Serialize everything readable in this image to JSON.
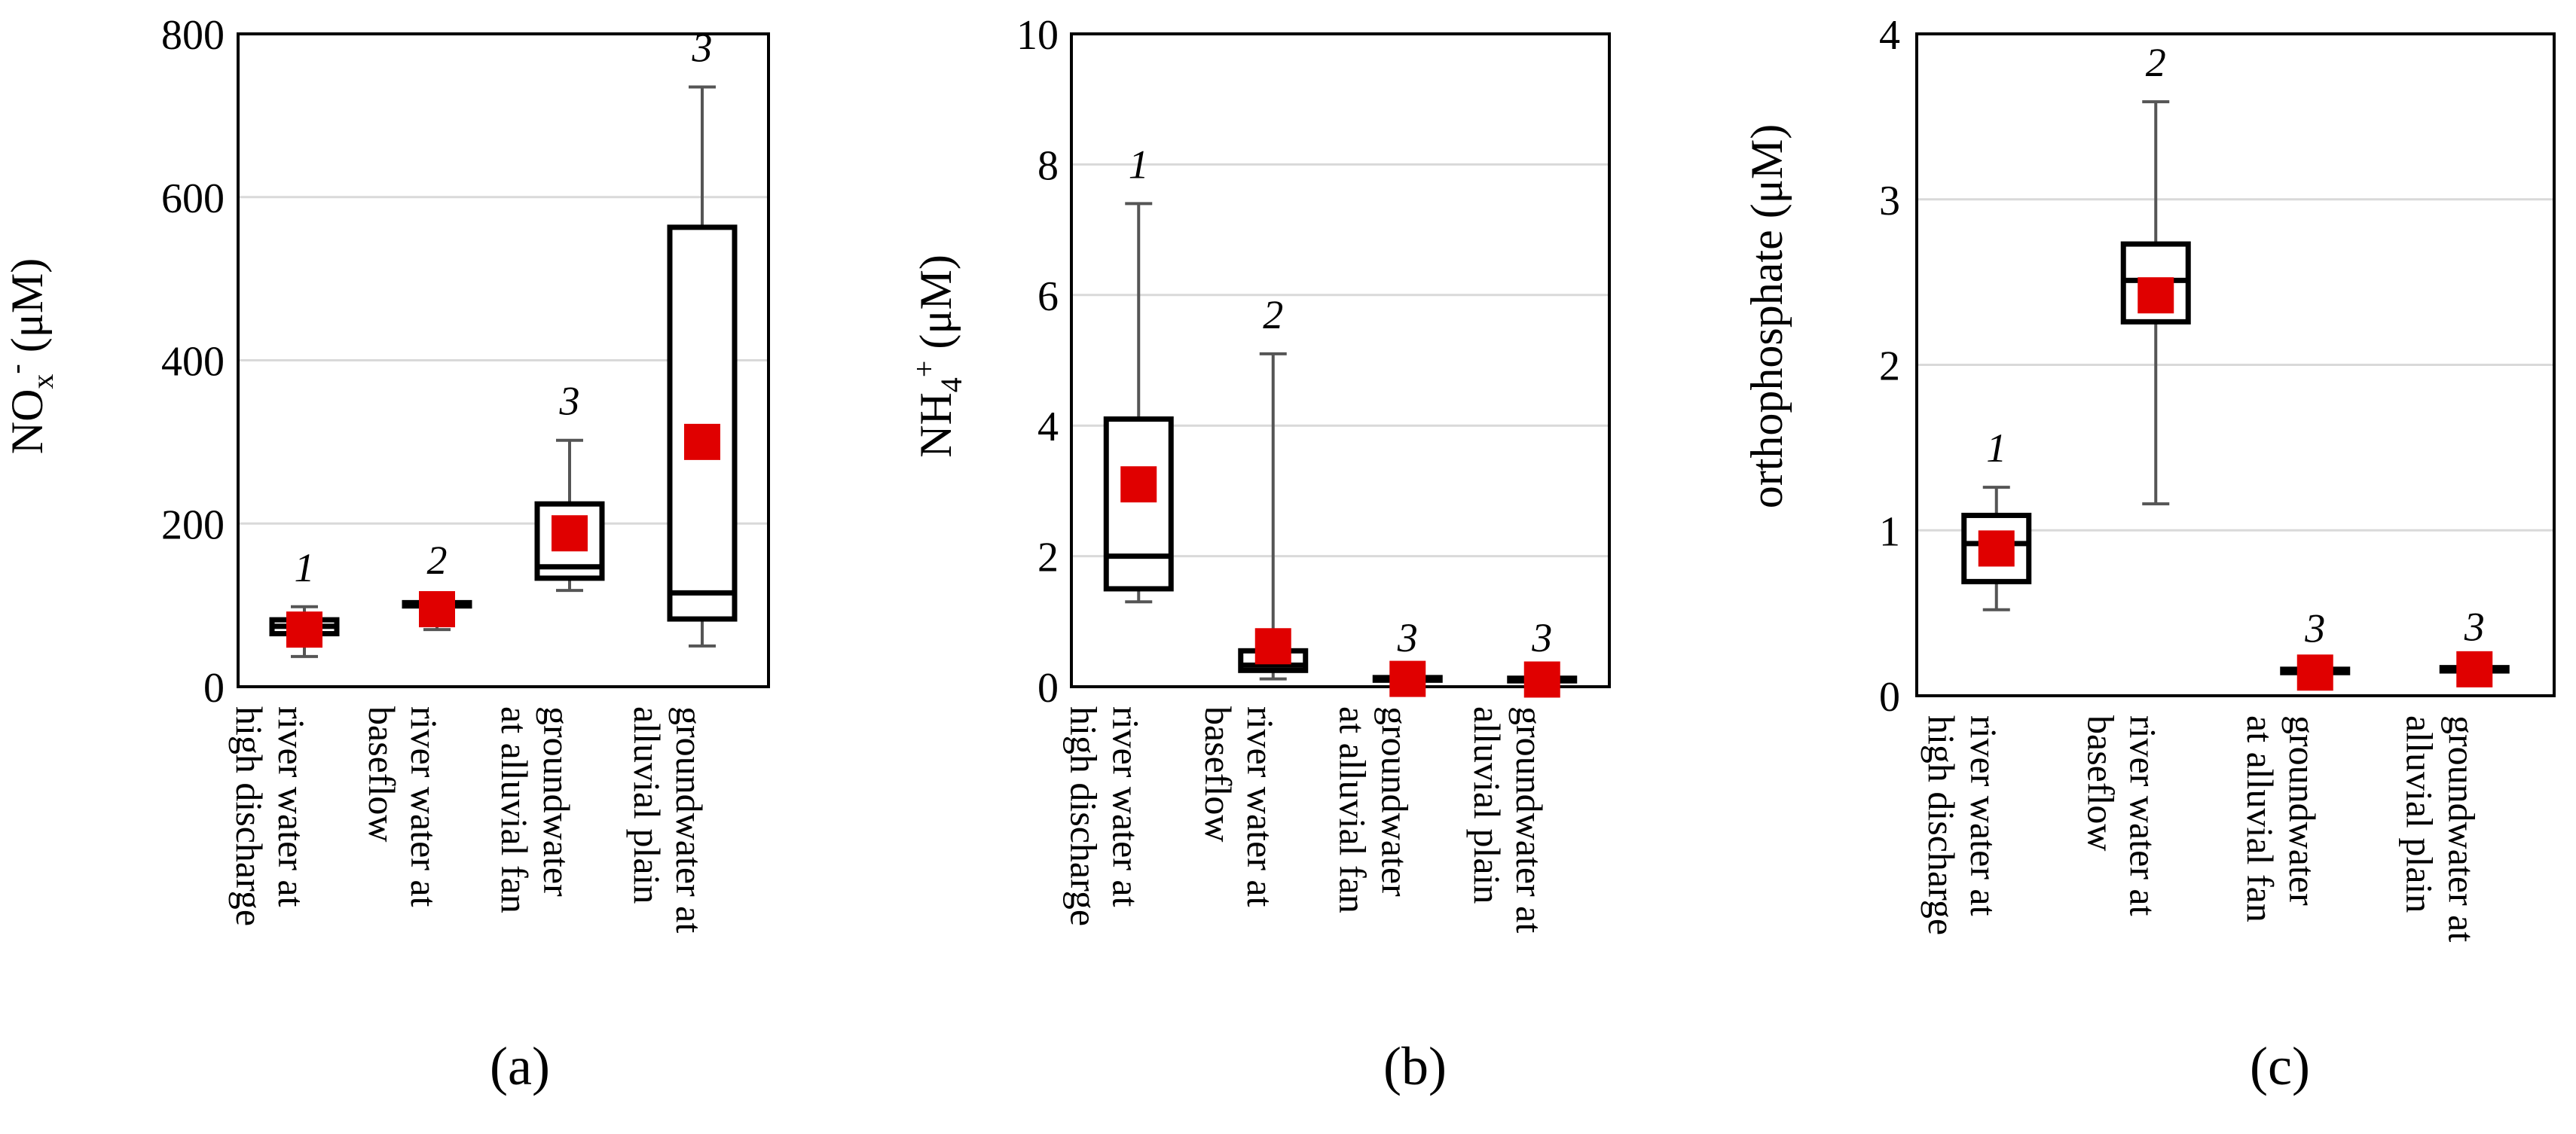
{
  "chart_data": [
    {
      "type": "boxplot",
      "panel_label": "(a)",
      "ylabel": {
        "main": "NO",
        "sub": "x",
        "sup": "-",
        "unit": " (μM)"
      },
      "ylim": [
        0,
        800
      ],
      "yticks": [
        0,
        200,
        400,
        600,
        800
      ],
      "categories": [
        [
          "river water at",
          "high discharge"
        ],
        [
          "river water at",
          "baseflow"
        ],
        [
          "groundwater",
          "at alluvial fan"
        ],
        [
          "groundwater at",
          "alluvial plain"
        ]
      ],
      "boxes": [
        {
          "min": 37,
          "q1": 65,
          "median": 74,
          "q3": 82,
          "max": 98,
          "mean": 70,
          "n": "1"
        },
        {
          "min": 70,
          "q1": 99,
          "median": 101,
          "q3": 103,
          "max": 107,
          "mean": 95,
          "n": "2"
        },
        {
          "min": 118,
          "q1": 133,
          "median": 147,
          "q3": 224,
          "max": 302,
          "mean": 188,
          "n": "3"
        },
        {
          "min": 50,
          "q1": 83,
          "median": 115,
          "q3": 563,
          "max": 735,
          "mean": 300,
          "n": "3"
        }
      ]
    },
    {
      "type": "boxplot",
      "panel_label": "(b)",
      "ylabel": {
        "main": "NH",
        "sub": "4",
        "sup": "+",
        "unit": " (μM)"
      },
      "ylim": [
        0,
        10
      ],
      "yticks": [
        0,
        2,
        4,
        6,
        8,
        10
      ],
      "categories": [
        [
          "river water at",
          "high discharge"
        ],
        [
          "river water at",
          "baseflow"
        ],
        [
          "groundwater",
          "at alluvial fan"
        ],
        [
          "groundwater at",
          "alluvial plain"
        ]
      ],
      "boxes": [
        {
          "min": 1.3,
          "q1": 1.5,
          "median": 2.0,
          "q3": 4.1,
          "max": 7.4,
          "mean": 3.1,
          "n": "1"
        },
        {
          "min": 0.12,
          "q1": 0.25,
          "median": 0.33,
          "q3": 0.55,
          "max": 5.1,
          "mean": 0.62,
          "n": "2"
        },
        {
          "min": 0.09,
          "q1": 0.1,
          "median": 0.12,
          "q3": 0.14,
          "max": 0.15,
          "mean": 0.12,
          "n": "3"
        },
        {
          "min": 0.07,
          "q1": 0.09,
          "median": 0.11,
          "q3": 0.13,
          "max": 0.15,
          "mean": 0.11,
          "n": "3"
        }
      ]
    },
    {
      "type": "boxplot",
      "panel_label": "(c)",
      "ylabel": {
        "main": "orthophosphate (μM)",
        "sub": "",
        "sup": "",
        "unit": ""
      },
      "ylim": [
        0,
        4
      ],
      "yticks": [
        0,
        1,
        2,
        3,
        4
      ],
      "categories": [
        [
          "river water at",
          "high discharge"
        ],
        [
          "river water at",
          "baseflow"
        ],
        [
          "groundwater",
          "at alluvial fan"
        ],
        [
          "groundwater at",
          "alluvial plain"
        ]
      ],
      "boxes": [
        {
          "min": 0.52,
          "q1": 0.69,
          "median": 0.92,
          "q3": 1.09,
          "max": 1.26,
          "mean": 0.89,
          "n": "1"
        },
        {
          "min": 1.16,
          "q1": 2.26,
          "median": 2.51,
          "q3": 2.73,
          "max": 3.59,
          "mean": 2.42,
          "n": "2"
        },
        {
          "min": 0.14,
          "q1": 0.14,
          "median": 0.15,
          "q3": 0.16,
          "max": 0.17,
          "mean": 0.14,
          "n": "3"
        },
        {
          "min": 0.15,
          "q1": 0.15,
          "median": 0.16,
          "q3": 0.17,
          "max": 0.18,
          "mean": 0.16,
          "n": "3"
        }
      ]
    }
  ]
}
